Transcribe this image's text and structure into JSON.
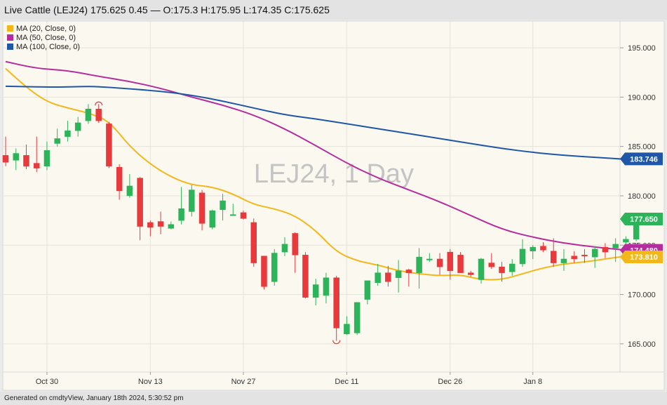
{
  "header": {
    "title": "Live Cattle (LEJ24) 175.625 0.45 — O:175.3 H:175.95 L:174.35 C:175.625"
  },
  "footer": {
    "text": "Generated on cmdtyView, January 18th 2024, 5:30:52 pm"
  },
  "chart_data": {
    "type": "candlestick",
    "watermark": "LEJ24, 1 Day",
    "ylim": [
      163,
      196.5
    ],
    "y_ticks": [
      165,
      170,
      175,
      180,
      185,
      190,
      195
    ],
    "y_tick_labels": [
      "165.000",
      "170.000",
      "175.000",
      "180.000",
      "185.000",
      "190.000",
      "195.000"
    ],
    "x_tick_labels": [
      {
        "label": "Oct 30",
        "index": 4
      },
      {
        "label": "Nov 13",
        "index": 14
      },
      {
        "label": "Nov 27",
        "index": 23
      },
      {
        "label": "Dec 11",
        "index": 33
      },
      {
        "label": "Dec 26",
        "index": 43
      },
      {
        "label": "Jan 8",
        "index": 51
      }
    ],
    "grid": true,
    "up_color": "#2db35a",
    "down_color": "#e8393c",
    "candles": [
      {
        "o": 184.1,
        "h": 186.0,
        "l": 183.0,
        "c": 183.4
      },
      {
        "o": 183.6,
        "h": 184.8,
        "l": 182.6,
        "c": 184.3
      },
      {
        "o": 184.1,
        "h": 185.2,
        "l": 182.7,
        "c": 183.0
      },
      {
        "o": 183.3,
        "h": 186.0,
        "l": 182.4,
        "c": 182.8
      },
      {
        "o": 183.0,
        "h": 185.5,
        "l": 182.6,
        "c": 184.6
      },
      {
        "o": 185.3,
        "h": 186.8,
        "l": 185.0,
        "c": 185.8
      },
      {
        "o": 186.0,
        "h": 187.6,
        "l": 185.5,
        "c": 186.6
      },
      {
        "o": 186.6,
        "h": 188.0,
        "l": 186.0,
        "c": 187.4
      },
      {
        "o": 187.6,
        "h": 189.3,
        "l": 187.3,
        "c": 188.8
      },
      {
        "o": 188.8,
        "h": 189.3,
        "l": 187.4,
        "c": 187.6
      },
      {
        "o": 187.3,
        "h": 187.5,
        "l": 182.8,
        "c": 183.0
      },
      {
        "o": 182.9,
        "h": 183.2,
        "l": 179.6,
        "c": 180.5
      },
      {
        "o": 180.0,
        "h": 182.2,
        "l": 179.8,
        "c": 181.0
      },
      {
        "o": 181.8,
        "h": 181.9,
        "l": 175.5,
        "c": 176.9
      },
      {
        "o": 177.3,
        "h": 177.5,
        "l": 175.9,
        "c": 176.8
      },
      {
        "o": 177.4,
        "h": 178.4,
        "l": 176.1,
        "c": 176.9
      },
      {
        "o": 176.7,
        "h": 177.4,
        "l": 176.6,
        "c": 177.1
      },
      {
        "o": 177.5,
        "h": 180.9,
        "l": 177.1,
        "c": 178.7
      },
      {
        "o": 178.4,
        "h": 181.1,
        "l": 177.9,
        "c": 180.6
      },
      {
        "o": 180.3,
        "h": 180.6,
        "l": 176.5,
        "c": 177.2
      },
      {
        "o": 176.8,
        "h": 178.6,
        "l": 176.6,
        "c": 178.5
      },
      {
        "o": 178.6,
        "h": 180.2,
        "l": 177.5,
        "c": 179.5
      },
      {
        "o": 178.1,
        "h": 179.2,
        "l": 178.1,
        "c": 178.1
      },
      {
        "o": 178.3,
        "h": 178.5,
        "l": 177.6,
        "c": 177.7
      },
      {
        "o": 177.3,
        "h": 177.7,
        "l": 172.8,
        "c": 173.2
      },
      {
        "o": 173.9,
        "h": 173.9,
        "l": 170.5,
        "c": 170.8
      },
      {
        "o": 171.3,
        "h": 174.6,
        "l": 170.9,
        "c": 174.2
      },
      {
        "o": 174.3,
        "h": 175.8,
        "l": 173.9,
        "c": 175.1
      },
      {
        "o": 176.2,
        "h": 176.3,
        "l": 172.2,
        "c": 174.0
      },
      {
        "o": 174.0,
        "h": 174.3,
        "l": 169.6,
        "c": 169.7
      },
      {
        "o": 169.7,
        "h": 171.6,
        "l": 168.9,
        "c": 171.0
      },
      {
        "o": 169.9,
        "h": 172.2,
        "l": 169.1,
        "c": 171.7
      },
      {
        "o": 171.7,
        "h": 171.9,
        "l": 165.3,
        "c": 166.6
      },
      {
        "o": 166.0,
        "h": 167.8,
        "l": 165.9,
        "c": 167.0
      },
      {
        "o": 166.1,
        "h": 169.2,
        "l": 165.9,
        "c": 169.2
      },
      {
        "o": 169.5,
        "h": 171.3,
        "l": 169.0,
        "c": 171.4
      },
      {
        "o": 171.2,
        "h": 173.1,
        "l": 170.9,
        "c": 172.2
      },
      {
        "o": 172.2,
        "h": 172.9,
        "l": 170.8,
        "c": 171.3
      },
      {
        "o": 171.7,
        "h": 173.5,
        "l": 170.2,
        "c": 172.4
      },
      {
        "o": 172.5,
        "h": 172.6,
        "l": 170.8,
        "c": 172.2
      },
      {
        "o": 172.2,
        "h": 174.7,
        "l": 170.6,
        "c": 173.8
      },
      {
        "o": 173.5,
        "h": 174.2,
        "l": 173.3,
        "c": 173.6
      },
      {
        "o": 173.6,
        "h": 174.2,
        "l": 172.0,
        "c": 172.8
      },
      {
        "o": 174.3,
        "h": 174.6,
        "l": 171.5,
        "c": 172.4
      },
      {
        "o": 174.0,
        "h": 174.3,
        "l": 172.3,
        "c": 172.2
      },
      {
        "o": 172.2,
        "h": 172.4,
        "l": 171.8,
        "c": 172.0
      },
      {
        "o": 171.5,
        "h": 173.7,
        "l": 171.1,
        "c": 173.6
      },
      {
        "o": 173.2,
        "h": 174.2,
        "l": 172.6,
        "c": 172.8
      },
      {
        "o": 172.8,
        "h": 173.3,
        "l": 171.3,
        "c": 172.2
      },
      {
        "o": 172.3,
        "h": 173.6,
        "l": 171.9,
        "c": 173.1
      },
      {
        "o": 173.1,
        "h": 175.6,
        "l": 172.8,
        "c": 174.6
      },
      {
        "o": 174.4,
        "h": 175.0,
        "l": 173.6,
        "c": 174.8
      },
      {
        "o": 174.9,
        "h": 175.3,
        "l": 174.3,
        "c": 174.5
      },
      {
        "o": 174.4,
        "h": 175.7,
        "l": 172.8,
        "c": 173.2
      },
      {
        "o": 173.2,
        "h": 174.6,
        "l": 172.4,
        "c": 173.6
      },
      {
        "o": 173.9,
        "h": 174.4,
        "l": 173.2,
        "c": 173.6
      },
      {
        "o": 174.0,
        "h": 174.6,
        "l": 173.2,
        "c": 173.9
      },
      {
        "o": 173.8,
        "h": 174.9,
        "l": 172.7,
        "c": 174.6
      },
      {
        "o": 174.8,
        "h": 175.2,
        "l": 173.7,
        "c": 174.3
      },
      {
        "o": 174.7,
        "h": 175.7,
        "l": 173.3,
        "c": 175.1
      },
      {
        "o": 175.3,
        "h": 175.9,
        "l": 174.4,
        "c": 175.6
      },
      {
        "o": 175.6,
        "h": 178.0,
        "l": 175.4,
        "c": 177.6
      }
    ],
    "markers": [
      {
        "type": "high",
        "index": 9,
        "value": 189.3
      },
      {
        "type": "low",
        "index": 32,
        "value": 165.3
      }
    ],
    "series": [
      {
        "name": "MA (20, Close, 0)",
        "color": "#f2b81b",
        "last_value_label": "173.810",
        "points": [
          [
            0,
            192.9
          ],
          [
            2,
            191.0
          ],
          [
            4,
            189.5
          ],
          [
            6,
            188.9
          ],
          [
            8,
            188.4
          ],
          [
            10,
            187.6
          ],
          [
            12,
            185.0
          ],
          [
            14,
            183.2
          ],
          [
            16,
            181.9
          ],
          [
            18,
            181.1
          ],
          [
            20,
            180.9
          ],
          [
            22,
            180.2
          ],
          [
            24,
            179.1
          ],
          [
            26,
            178.7
          ],
          [
            28,
            178.0
          ],
          [
            30,
            176.5
          ],
          [
            32,
            174.3
          ],
          [
            34,
            173.4
          ],
          [
            36,
            173.0
          ],
          [
            38,
            172.4
          ],
          [
            40,
            172.1
          ],
          [
            42,
            171.9
          ],
          [
            44,
            172.0
          ],
          [
            46,
            171.5
          ],
          [
            48,
            171.5
          ],
          [
            50,
            172.1
          ],
          [
            52,
            172.7
          ],
          [
            54,
            173.1
          ],
          [
            56,
            173.3
          ],
          [
            58,
            173.6
          ],
          [
            60,
            173.9
          ]
        ]
      },
      {
        "name": "MA (50, Close, 0)",
        "color": "#b52d9d",
        "last_value_label": "174.480",
        "points": [
          [
            0,
            193.6
          ],
          [
            3,
            192.9
          ],
          [
            6,
            192.7
          ],
          [
            9,
            192.1
          ],
          [
            12,
            191.6
          ],
          [
            15,
            190.9
          ],
          [
            18,
            190.0
          ],
          [
            21,
            189.2
          ],
          [
            24,
            188.2
          ],
          [
            27,
            186.8
          ],
          [
            30,
            185.1
          ],
          [
            33,
            183.3
          ],
          [
            36,
            181.8
          ],
          [
            39,
            180.6
          ],
          [
            42,
            179.4
          ],
          [
            45,
            178.0
          ],
          [
            48,
            176.6
          ],
          [
            51,
            175.8
          ],
          [
            54,
            175.2
          ],
          [
            57,
            174.8
          ],
          [
            60,
            174.5
          ]
        ]
      },
      {
        "name": "MA (100, Close, 0)",
        "color": "#1f56a8",
        "last_value_label": "183.746",
        "points": [
          [
            0,
            191.1
          ],
          [
            5,
            191.0
          ],
          [
            8,
            191.1
          ],
          [
            10,
            191.0
          ],
          [
            15,
            190.6
          ],
          [
            18,
            190.2
          ],
          [
            21,
            189.6
          ],
          [
            24,
            188.9
          ],
          [
            27,
            188.2
          ],
          [
            30,
            187.8
          ],
          [
            33,
            187.3
          ],
          [
            36,
            186.8
          ],
          [
            39,
            186.3
          ],
          [
            42,
            185.8
          ],
          [
            45,
            185.3
          ],
          [
            48,
            184.8
          ],
          [
            51,
            184.4
          ],
          [
            54,
            184.1
          ],
          [
            57,
            183.9
          ],
          [
            60,
            183.7
          ]
        ]
      }
    ],
    "last_price_label": "177.650",
    "last_price_value": 177.65
  }
}
